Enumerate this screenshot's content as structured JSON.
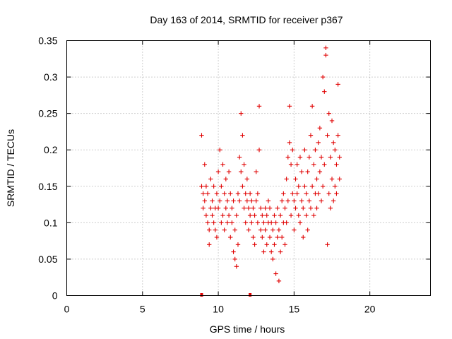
{
  "chart_data": {
    "type": "scatter",
    "title": "Day 163 of 2014, SRMTID for receiver p367",
    "xlabel": "GPS time / hours",
    "ylabel": "SRMTID / TECUs",
    "xlim": [
      0,
      24
    ],
    "ylim": [
      0,
      0.35
    ],
    "x_ticks": [
      0,
      5,
      10,
      15,
      20
    ],
    "x_tick_labels": [
      "0",
      "5",
      "10",
      "15",
      "20"
    ],
    "y_ticks": [
      0,
      0.05,
      0.1,
      0.15,
      0.2,
      0.25,
      0.3,
      0.35
    ],
    "y_tick_labels": [
      "0",
      "0.05",
      "0.1",
      "0.15",
      "0.2",
      "0.25",
      "0.3",
      "0.35"
    ],
    "grid": true,
    "marker": "+",
    "color": "#e00000",
    "zero_markers_x": [
      8.9,
      12.1
    ],
    "series": [
      {
        "name": "p367",
        "points": [
          [
            8.9,
            0.22
          ],
          [
            8.9,
            0.15
          ],
          [
            9.0,
            0.14
          ],
          [
            9.0,
            0.12
          ],
          [
            9.1,
            0.13
          ],
          [
            9.1,
            0.18
          ],
          [
            9.2,
            0.11
          ],
          [
            9.2,
            0.15
          ],
          [
            9.3,
            0.1
          ],
          [
            9.3,
            0.14
          ],
          [
            9.4,
            0.09
          ],
          [
            9.4,
            0.07
          ],
          [
            9.5,
            0.12
          ],
          [
            9.5,
            0.16
          ],
          [
            9.6,
            0.11
          ],
          [
            9.6,
            0.13
          ],
          [
            9.7,
            0.1
          ],
          [
            9.7,
            0.15
          ],
          [
            9.8,
            0.12
          ],
          [
            9.8,
            0.09
          ],
          [
            9.9,
            0.08
          ],
          [
            9.9,
            0.14
          ],
          [
            10.0,
            0.17
          ],
          [
            10.0,
            0.12
          ],
          [
            10.1,
            0.2
          ],
          [
            10.1,
            0.13
          ],
          [
            10.2,
            0.1
          ],
          [
            10.2,
            0.15
          ],
          [
            10.3,
            0.11
          ],
          [
            10.3,
            0.18
          ],
          [
            10.4,
            0.09
          ],
          [
            10.4,
            0.14
          ],
          [
            10.5,
            0.12
          ],
          [
            10.5,
            0.16
          ],
          [
            10.6,
            0.1
          ],
          [
            10.6,
            0.13
          ],
          [
            10.7,
            0.11
          ],
          [
            10.7,
            0.17
          ],
          [
            10.8,
            0.14
          ],
          [
            10.8,
            0.08
          ],
          [
            10.9,
            0.12
          ],
          [
            10.9,
            0.1
          ],
          [
            11.0,
            0.06
          ],
          [
            11.0,
            0.13
          ],
          [
            11.1,
            0.05
          ],
          [
            11.1,
            0.09
          ],
          [
            11.2,
            0.04
          ],
          [
            11.2,
            0.11
          ],
          [
            11.3,
            0.07
          ],
          [
            11.3,
            0.14
          ],
          [
            11.4,
            0.19
          ],
          [
            11.4,
            0.13
          ],
          [
            11.5,
            0.25
          ],
          [
            11.5,
            0.17
          ],
          [
            11.6,
            0.22
          ],
          [
            11.6,
            0.15
          ],
          [
            11.7,
            0.12
          ],
          [
            11.7,
            0.18
          ],
          [
            11.8,
            0.14
          ],
          [
            11.8,
            0.1
          ],
          [
            11.9,
            0.13
          ],
          [
            11.9,
            0.16
          ],
          [
            12.0,
            0.12
          ],
          [
            12.0,
            0.09
          ],
          [
            12.1,
            0.14
          ],
          [
            12.1,
            0.11
          ],
          [
            12.2,
            0.1
          ],
          [
            12.2,
            0.13
          ],
          [
            12.3,
            0.08
          ],
          [
            12.3,
            0.12
          ],
          [
            12.4,
            0.11
          ],
          [
            12.4,
            0.07
          ],
          [
            12.5,
            0.13
          ],
          [
            12.5,
            0.17
          ],
          [
            12.6,
            0.1
          ],
          [
            12.6,
            0.14
          ],
          [
            12.7,
            0.2
          ],
          [
            12.7,
            0.26
          ],
          [
            12.8,
            0.09
          ],
          [
            12.8,
            0.12
          ],
          [
            12.9,
            0.08
          ],
          [
            12.9,
            0.11
          ],
          [
            13.0,
            0.1
          ],
          [
            13.0,
            0.06
          ],
          [
            13.1,
            0.12
          ],
          [
            13.1,
            0.09
          ],
          [
            13.2,
            0.07
          ],
          [
            13.2,
            0.11
          ],
          [
            13.3,
            0.1
          ],
          [
            13.3,
            0.13
          ],
          [
            13.4,
            0.08
          ],
          [
            13.4,
            0.12
          ],
          [
            13.5,
            0.06
          ],
          [
            13.5,
            0.1
          ],
          [
            13.6,
            0.09
          ],
          [
            13.6,
            0.05
          ],
          [
            13.7,
            0.11
          ],
          [
            13.7,
            0.07
          ],
          [
            13.8,
            0.03
          ],
          [
            13.8,
            0.1
          ],
          [
            13.9,
            0.08
          ],
          [
            13.9,
            0.12
          ],
          [
            14.0,
            0.02
          ],
          [
            14.0,
            0.09
          ],
          [
            14.1,
            0.11
          ],
          [
            14.1,
            0.06
          ],
          [
            14.2,
            0.13
          ],
          [
            14.2,
            0.08
          ],
          [
            14.3,
            0.1
          ],
          [
            14.3,
            0.14
          ],
          [
            14.4,
            0.07
          ],
          [
            14.4,
            0.12
          ],
          [
            14.5,
            0.16
          ],
          [
            14.5,
            0.1
          ],
          [
            14.6,
            0.19
          ],
          [
            14.6,
            0.13
          ],
          [
            14.7,
            0.26
          ],
          [
            14.7,
            0.21
          ],
          [
            14.8,
            0.18
          ],
          [
            14.8,
            0.11
          ],
          [
            14.9,
            0.14
          ],
          [
            14.9,
            0.2
          ],
          [
            15.0,
            0.09
          ],
          [
            15.0,
            0.13
          ],
          [
            15.1,
            0.16
          ],
          [
            15.1,
            0.12
          ],
          [
            15.2,
            0.18
          ],
          [
            15.2,
            0.14
          ],
          [
            15.3,
            0.11
          ],
          [
            15.3,
            0.15
          ],
          [
            15.4,
            0.19
          ],
          [
            15.4,
            0.1
          ],
          [
            15.5,
            0.13
          ],
          [
            15.5,
            0.17
          ],
          [
            15.6,
            0.12
          ],
          [
            15.6,
            0.08
          ],
          [
            15.7,
            0.15
          ],
          [
            15.7,
            0.2
          ],
          [
            15.8,
            0.11
          ],
          [
            15.8,
            0.14
          ],
          [
            15.9,
            0.09
          ],
          [
            15.9,
            0.17
          ],
          [
            16.0,
            0.13
          ],
          [
            16.0,
            0.19
          ],
          [
            16.1,
            0.12
          ],
          [
            16.1,
            0.22
          ],
          [
            16.2,
            0.15
          ],
          [
            16.2,
            0.26
          ],
          [
            16.3,
            0.18
          ],
          [
            16.3,
            0.11
          ],
          [
            16.4,
            0.14
          ],
          [
            16.4,
            0.2
          ],
          [
            16.5,
            0.16
          ],
          [
            16.5,
            0.12
          ],
          [
            16.6,
            0.21
          ],
          [
            16.6,
            0.14
          ],
          [
            16.7,
            0.17
          ],
          [
            16.7,
            0.23
          ],
          [
            16.8,
            0.13
          ],
          [
            16.8,
            0.19
          ],
          [
            16.9,
            0.3
          ],
          [
            16.9,
            0.15
          ],
          [
            17.0,
            0.28
          ],
          [
            17.0,
            0.18
          ],
          [
            17.1,
            0.34
          ],
          [
            17.1,
            0.33
          ],
          [
            17.2,
            0.22
          ],
          [
            17.2,
            0.07
          ],
          [
            17.3,
            0.14
          ],
          [
            17.3,
            0.25
          ],
          [
            17.4,
            0.19
          ],
          [
            17.4,
            0.12
          ],
          [
            17.5,
            0.24
          ],
          [
            17.5,
            0.16
          ],
          [
            17.6,
            0.21
          ],
          [
            17.6,
            0.13
          ],
          [
            17.7,
            0.15
          ],
          [
            17.7,
            0.2
          ],
          [
            17.8,
            0.14
          ],
          [
            17.8,
            0.18
          ],
          [
            17.9,
            0.29
          ],
          [
            17.9,
            0.22
          ],
          [
            18.0,
            0.19
          ],
          [
            18.0,
            0.16
          ]
        ]
      }
    ]
  }
}
